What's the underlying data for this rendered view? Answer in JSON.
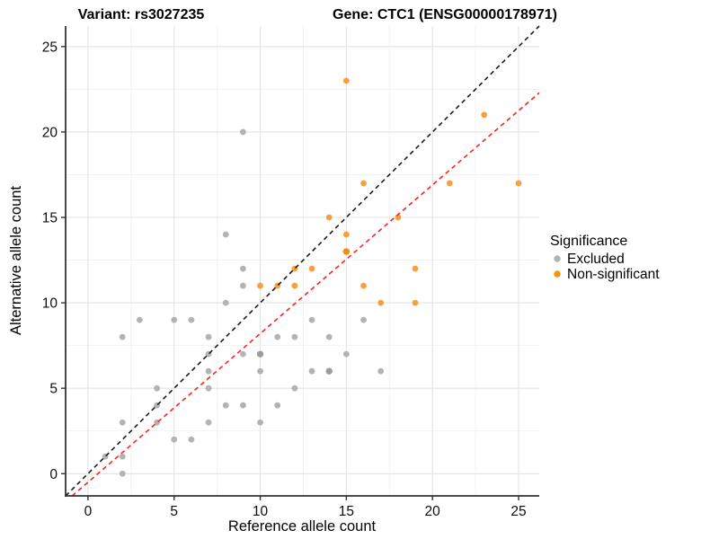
{
  "chart_data": {
    "type": "scatter",
    "title_left": "Variant: rs3027235",
    "title_right": "Gene: CTC1 (ENSG00000178971)",
    "xlabel": "Reference allele count",
    "ylabel": "Alternative allele count",
    "xlim": [
      -1.3,
      26.2
    ],
    "ylim": [
      -1.3,
      26.2
    ],
    "xticks": [
      0,
      5,
      10,
      15,
      20,
      25
    ],
    "yticks": [
      0,
      5,
      10,
      15,
      20,
      25
    ],
    "minor_gridlines": [
      2.5,
      7.5,
      12.5,
      17.5,
      22.5
    ],
    "grid": "on",
    "colors": {
      "major_grid": "#e3e3e3",
      "minor_grid": "#f1f1f1",
      "axis": "#333333",
      "identity_line": "#1a1a1a",
      "fit_line": "#ff1f1f"
    },
    "legend": {
      "title": "Significance",
      "position": "right",
      "entries": [
        {
          "label": "Excluded",
          "color": "#b3b3b3"
        },
        {
          "label": "Non-significant",
          "color": "#f59507"
        }
      ]
    },
    "series": [
      {
        "name": "Excluded",
        "color": "#b3b3b3",
        "overlap_color": "#9c9c9c",
        "points": [
          [
            1,
            1
          ],
          [
            2,
            0
          ],
          [
            2,
            1
          ],
          [
            2,
            3
          ],
          [
            2,
            8
          ],
          [
            3,
            9
          ],
          [
            4,
            3
          ],
          [
            4,
            4
          ],
          [
            4,
            5
          ],
          [
            5,
            2
          ],
          [
            5,
            9
          ],
          [
            6,
            2
          ],
          [
            6,
            9
          ],
          [
            7,
            3
          ],
          [
            7,
            5
          ],
          [
            7,
            6
          ],
          [
            7,
            7
          ],
          [
            7,
            8
          ],
          [
            8,
            4
          ],
          [
            8,
            10
          ],
          [
            8,
            14
          ],
          [
            9,
            4
          ],
          [
            9,
            7
          ],
          [
            9,
            11
          ],
          [
            9,
            12
          ],
          [
            9,
            20
          ],
          [
            10,
            3
          ],
          [
            10,
            6
          ],
          [
            11,
            4
          ],
          [
            11,
            8
          ],
          [
            12,
            5
          ],
          [
            12,
            8
          ],
          [
            13,
            6
          ],
          [
            13,
            9
          ],
          [
            14,
            8
          ],
          [
            15,
            7
          ],
          [
            16,
            9
          ],
          [
            17,
            6
          ]
        ],
        "overlap_points": [
          [
            10,
            7
          ],
          [
            14,
            6
          ]
        ]
      },
      {
        "name": "Non-significant",
        "color": "#f9a03c",
        "overlap_color": "#ee8e12",
        "points": [
          [
            10,
            11
          ],
          [
            11,
            11
          ],
          [
            12,
            11
          ],
          [
            12,
            12
          ],
          [
            13,
            12
          ],
          [
            14,
            15
          ],
          [
            15,
            14
          ],
          [
            15,
            23
          ],
          [
            16,
            11
          ],
          [
            16,
            17
          ],
          [
            17,
            10
          ],
          [
            18,
            15
          ],
          [
            19,
            10
          ],
          [
            19,
            12
          ],
          [
            21,
            17
          ],
          [
            23,
            21
          ],
          [
            25,
            17
          ]
        ],
        "overlap_points": [
          [
            15,
            13
          ]
        ]
      }
    ],
    "lines": [
      {
        "name": "identity",
        "slope": 1,
        "intercept": 0,
        "color": "#1a1a1a",
        "style": "dashed"
      },
      {
        "name": "fit",
        "slope": 0.87,
        "intercept": -0.5,
        "color": "#ff1f1f",
        "style": "dashed"
      }
    ]
  }
}
